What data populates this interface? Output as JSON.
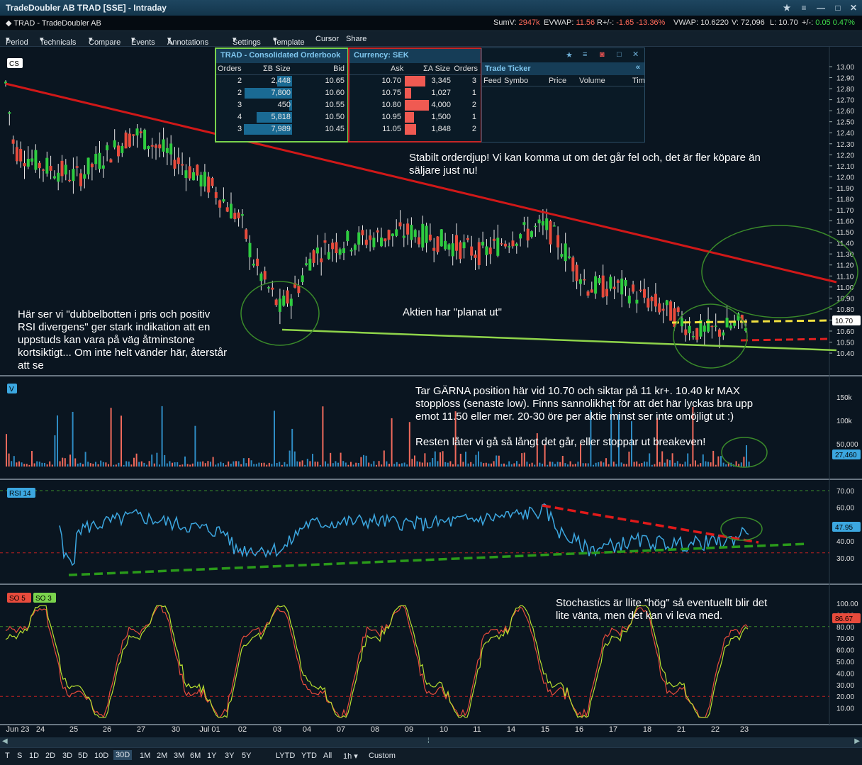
{
  "window": {
    "title": "TradeDoubler AB TRAD [SSE] - Intraday"
  },
  "infobar": {
    "symbol": "TRAD - TradeDoubler AB",
    "sumv_label": "SumV:",
    "sumv": "2947k",
    "evwap_label": "EVWAP:",
    "evwap": "11.56",
    "rpm_label": "R+/-:",
    "rpm": "-1.65",
    "rpm_pct": "-13.36%",
    "vwap": "VWAP: 10.6220",
    "volume": "V: 72,096",
    "last": "L: 10.70",
    "pm_label": "+/-:",
    "pm": "0.05",
    "pm_pct": "0.47%"
  },
  "menu": [
    "Period",
    "Technicals",
    "Compare",
    "Events",
    "Annotations",
    "Settings",
    "Template",
    "Cursor",
    "Share"
  ],
  "orderbook": {
    "title_left": "TRAD - Consolidated Orderbook",
    "title_right": "Currency: SEK",
    "cols": {
      "orders": "Orders",
      "bsize": "ΣB Size",
      "bid": "Bid",
      "ask": "Ask",
      "asize": "ΣA Size",
      "orders2": "Orders"
    },
    "bids": [
      {
        "orders": "2",
        "size": "2,448",
        "bid": "10.65",
        "frac": 0.31
      },
      {
        "orders": "2",
        "size": "7,800",
        "bid": "10.60",
        "frac": 0.98
      },
      {
        "orders": "3",
        "size": "450",
        "bid": "10.55",
        "frac": 0.06
      },
      {
        "orders": "4",
        "size": "5,818",
        "bid": "10.50",
        "frac": 0.73
      },
      {
        "orders": "3",
        "size": "7,989",
        "bid": "10.45",
        "frac": 1.0
      }
    ],
    "asks": [
      {
        "ask": "10.70",
        "size": "3,345",
        "orders": "3",
        "frac": 0.84
      },
      {
        "ask": "10.75",
        "size": "1,027",
        "orders": "1",
        "frac": 0.26
      },
      {
        "ask": "10.80",
        "size": "4,000",
        "orders": "2",
        "frac": 1.0
      },
      {
        "ask": "10.95",
        "size": "1,500",
        "orders": "1",
        "frac": 0.38
      },
      {
        "ask": "11.05",
        "size": "1,848",
        "orders": "2",
        "frac": 0.46
      }
    ]
  },
  "ticker": {
    "title": "Trade Ticker",
    "cols": [
      "Feed",
      "Symbo",
      "Price",
      "Volume",
      "Tim"
    ]
  },
  "panels": {
    "price": "CS",
    "volume": "V",
    "rsi": "RSI 14",
    "so1": "SO 5",
    "so2": "SO 3"
  },
  "notes": {
    "n1": "Stabilt orderdjup! Vi kan komma ut om det går fel och, det är fler köpare än\nsäljare just nu!",
    "n2": "Här ser vi \"dubbelbotten i pris och positiv\nRSI divergens\" ger stark indikation att en\nuppstuds kan vara på väg åtminstone\nkortsiktigt... Om inte helt vänder här, återstår\natt se",
    "n3": "Aktien har \"planat ut\"",
    "n4": "Tar GÄRNA position här vid 10.70 och siktar på 11 kr+. 10.40 kr MAX\nstopploss (senaste low). Finns sannolikhet för att det här lyckas bra upp\nemot 11.50 eller mer. 20-30 öre per aktie minst ser inte omöjligt ut :)\n\nResten låter vi gå så långt det går, eller stoppar ut breakeven!",
    "n5": "Stochastics är llite \"hög\" så eventuellt blir det\nlite vänta, men det kan vi leva med."
  },
  "axes": {
    "price": [
      "13.00",
      "12.90",
      "12.80",
      "12.70",
      "12.60",
      "12.50",
      "12.40",
      "12.30",
      "12.20",
      "12.10",
      "12.00",
      "11.90",
      "11.80",
      "11.70",
      "11.60",
      "11.50",
      "11.40",
      "11.30",
      "11.20",
      "11.10",
      "11.00",
      "10.90",
      "10.80",
      "10.70",
      "10.60",
      "10.50",
      "10.40"
    ],
    "volume": [
      "150k",
      "100k",
      "50,000"
    ],
    "rsi": [
      "70.00",
      "60.00",
      "50.00",
      "40.00",
      "30.00"
    ],
    "so": [
      "100.00",
      "90.00",
      "80.00",
      "70.00",
      "60.00",
      "50.00",
      "40.00",
      "30.00",
      "20.00",
      "10.00"
    ],
    "dates": [
      "Jun 23",
      "24",
      "25",
      "26",
      "27",
      "30",
      "Jul 01",
      "02",
      "03",
      "04",
      "07",
      "08",
      "09",
      "10",
      "11",
      "14",
      "15",
      "16",
      "17",
      "18",
      "21",
      "22",
      "23"
    ]
  },
  "badges": {
    "price": "10.70",
    "volume": "27,460",
    "rsi": "47.95",
    "so": "86.67"
  },
  "bottombar": [
    "T",
    "S",
    "1D",
    "2D",
    "3D",
    "5D",
    "10D",
    "30D",
    "1M",
    "2M",
    "3M",
    "6M",
    "1Y",
    "3Y",
    "5Y",
    "LYTD",
    "YTD",
    "All",
    "1h",
    "Custom"
  ],
  "colors": {
    "up": "#2ecc40",
    "down": "#e84b3c",
    "rsi": "#3ca7e0",
    "red_trend": "#d01818",
    "green_trend": "#8fd44a",
    "yellow": "#f0e040"
  }
}
